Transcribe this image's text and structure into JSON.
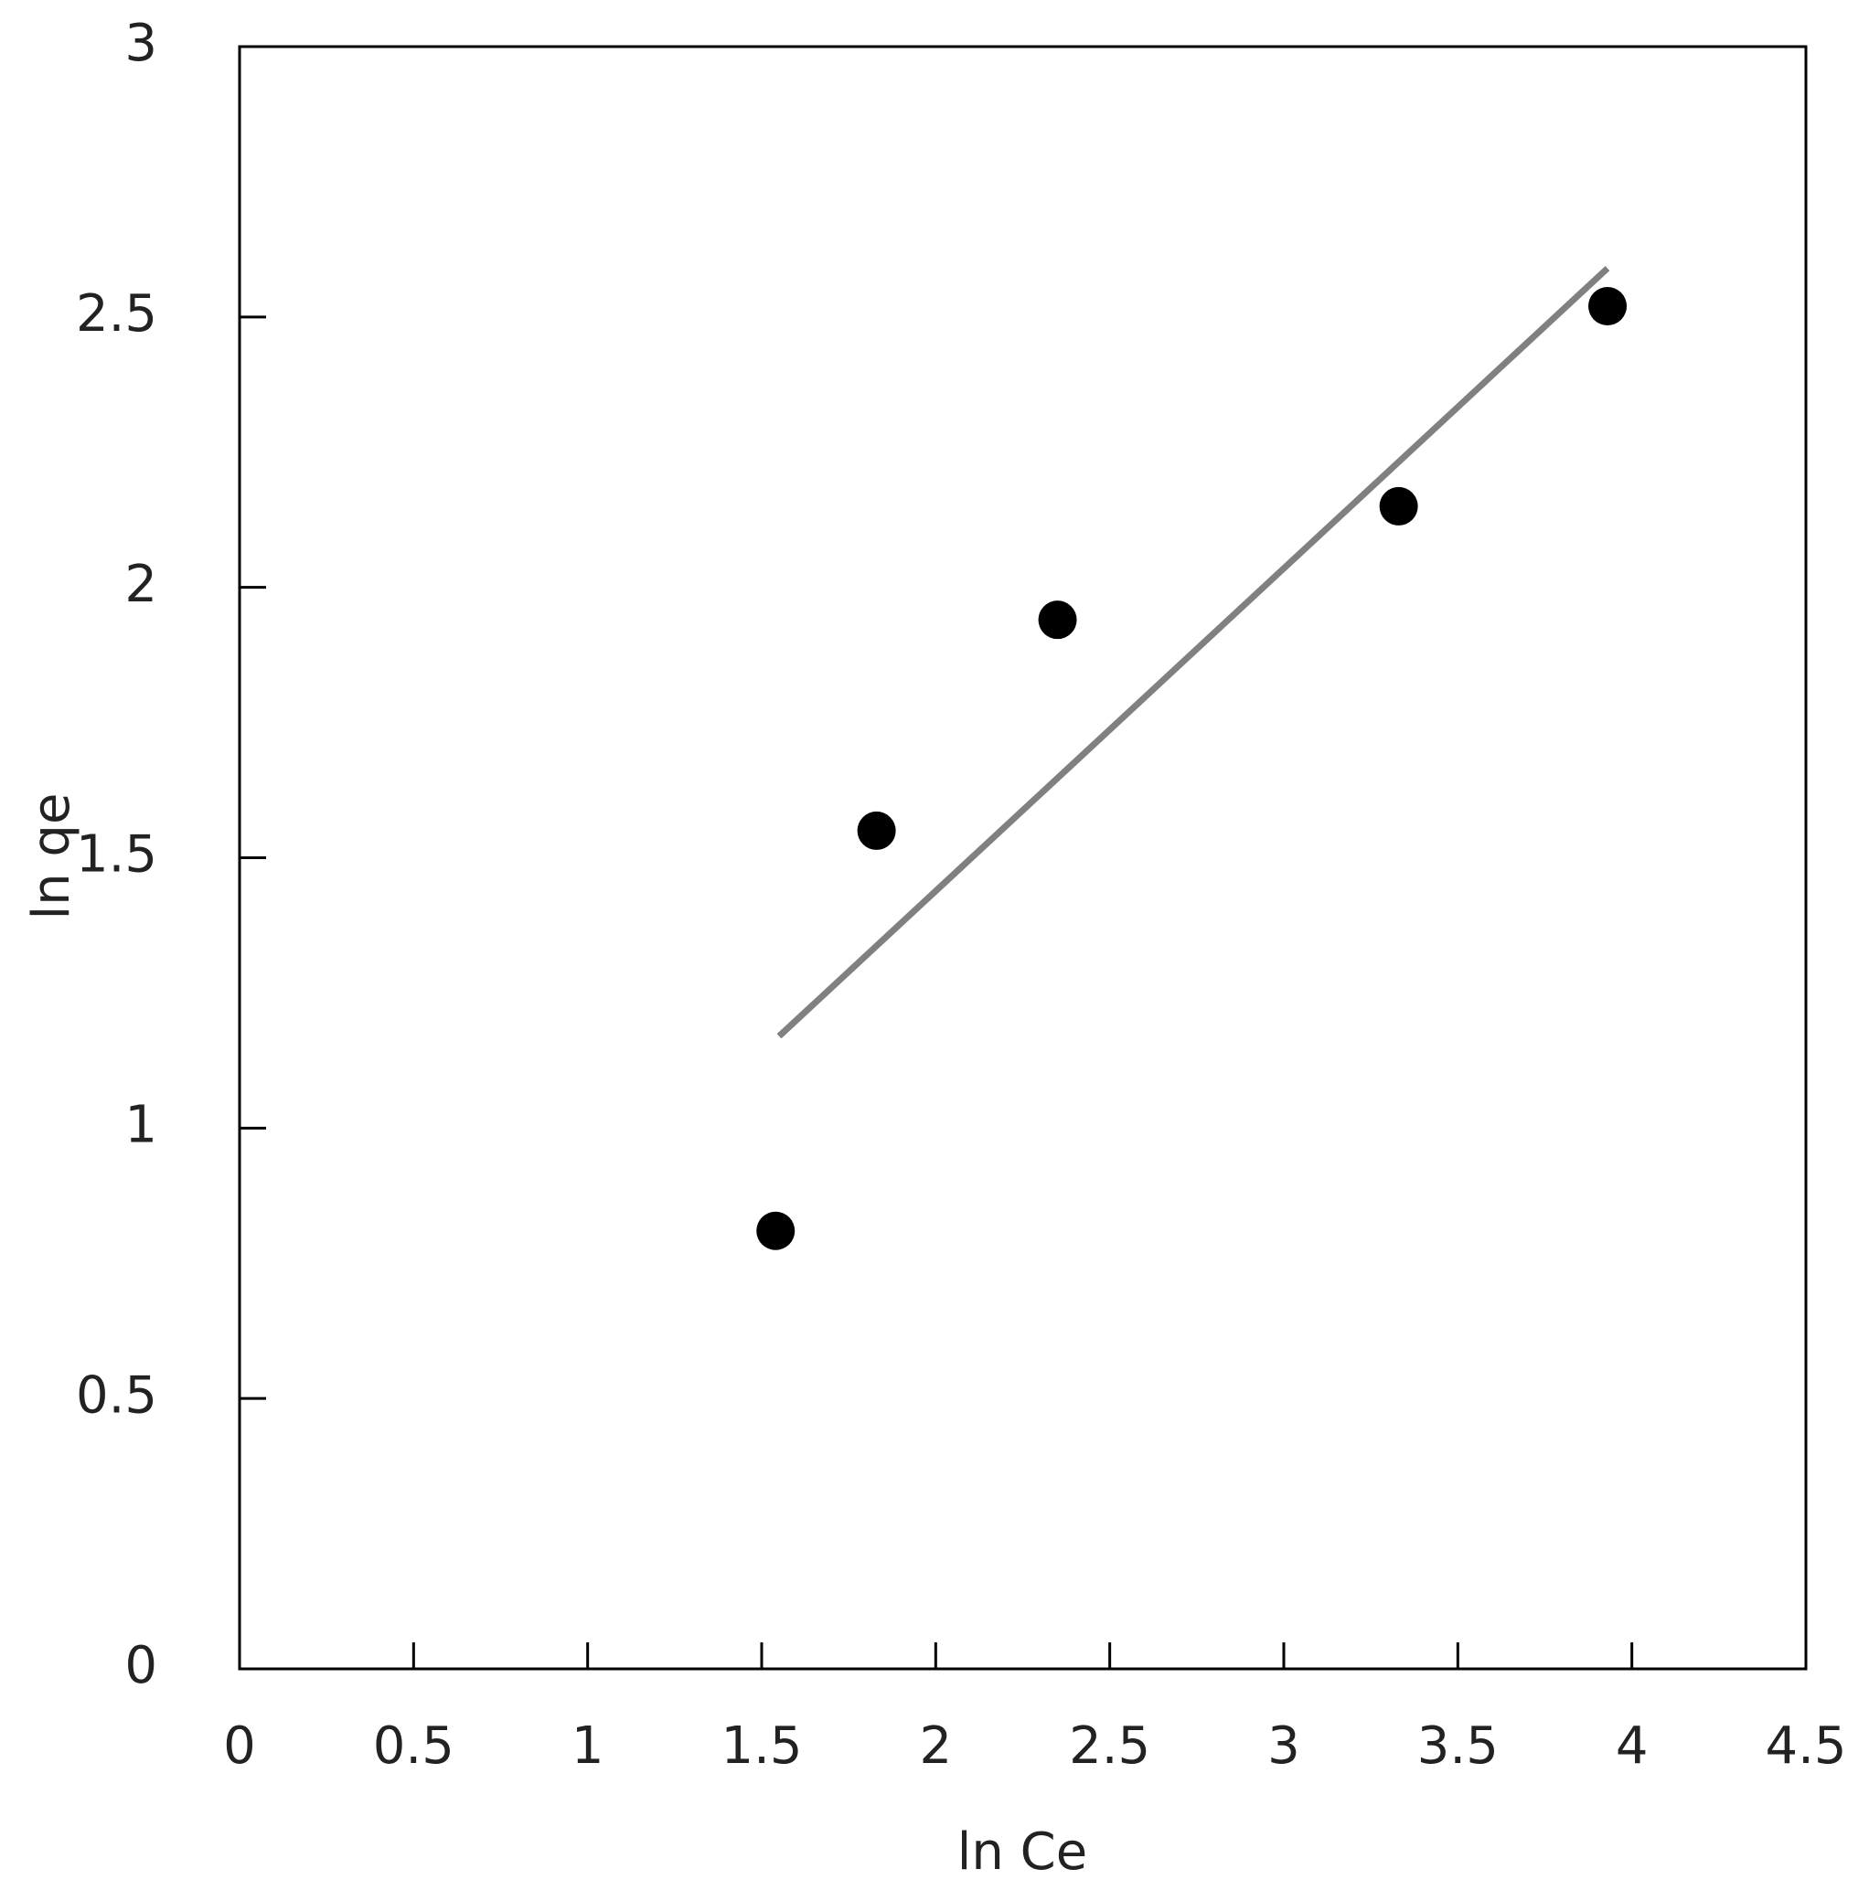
{
  "chart_data": {
    "type": "scatter",
    "xlabel": "ln Ce",
    "ylabel": "ln qe",
    "series": [
      {
        "x": [
          1.54,
          1.83,
          2.35,
          3.33,
          3.93
        ],
        "values": [
          0.81,
          1.55,
          1.94,
          2.15,
          2.52
        ],
        "color": "#000000"
      }
    ],
    "trendline": {
      "x": [
        1.55,
        3.93
      ],
      "values": [
        1.17,
        2.59
      ],
      "color": "#808080"
    },
    "xlim": [
      0,
      4.5
    ],
    "xticks": [
      0,
      0.5,
      1,
      1.5,
      2,
      2.5,
      3,
      3.5,
      4,
      4.5
    ],
    "ylim": [
      0,
      3
    ],
    "yticks": [
      0,
      0.5,
      1,
      1.5,
      2,
      2.5,
      3
    ]
  }
}
